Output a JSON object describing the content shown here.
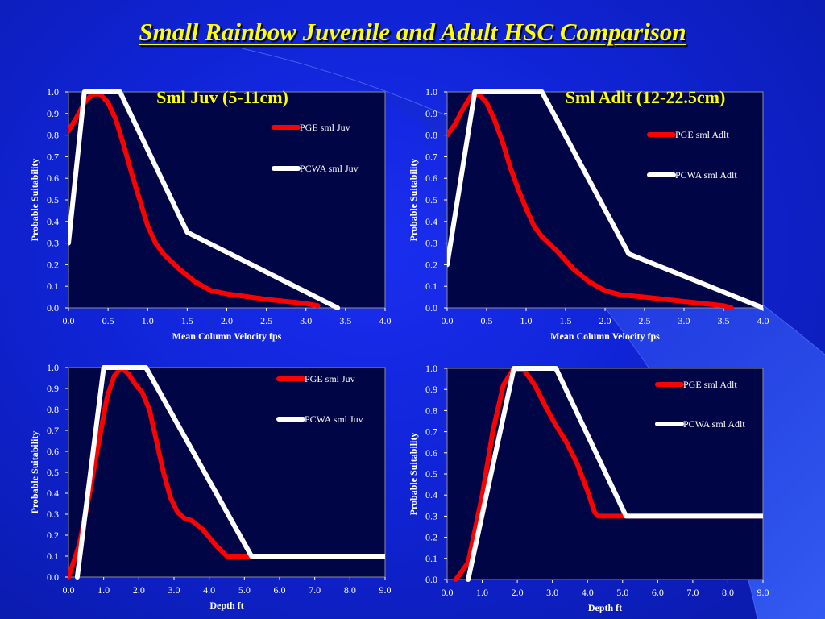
{
  "slide": {
    "title": "Small Rainbow Juvenile and Adult HSC Comparison"
  },
  "colors": {
    "plot_bg": "#000645",
    "pge": "#ff0000",
    "pcwa": "#ffffff",
    "title": "#ffff00"
  },
  "chart_data": [
    {
      "type": "line",
      "title": "Sml Juv (5-11cm)",
      "xlabel": "Mean Column Velocity fps",
      "ylabel": "Probable Suitability",
      "xlim": [
        0,
        4
      ],
      "ylim": [
        0,
        1
      ],
      "x_ticks": [
        "0.0",
        "0.5",
        "1.0",
        "1.5",
        "2.0",
        "2.5",
        "3.0",
        "3.5",
        "4.0"
      ],
      "y_ticks": [
        "0.0",
        "0.1",
        "0.2",
        "0.3",
        "0.4",
        "0.5",
        "0.6",
        "0.7",
        "0.8",
        "0.9",
        "1.0"
      ],
      "legend_position": "right",
      "series": [
        {
          "name": "PGE sml Juv",
          "color": "#ff0000",
          "points": [
            [
              0,
              0.82
            ],
            [
              0.1,
              0.88
            ],
            [
              0.2,
              0.95
            ],
            [
              0.3,
              0.99
            ],
            [
              0.4,
              0.99
            ],
            [
              0.5,
              0.95
            ],
            [
              0.6,
              0.87
            ],
            [
              0.7,
              0.75
            ],
            [
              0.8,
              0.62
            ],
            [
              0.9,
              0.5
            ],
            [
              1.0,
              0.38
            ],
            [
              1.1,
              0.3
            ],
            [
              1.2,
              0.25
            ],
            [
              1.4,
              0.18
            ],
            [
              1.6,
              0.12
            ],
            [
              1.8,
              0.08
            ],
            [
              2.0,
              0.065
            ],
            [
              2.5,
              0.04
            ],
            [
              3.0,
              0.02
            ],
            [
              3.15,
              0.01
            ]
          ]
        },
        {
          "name": "PCWA sml Juv",
          "color": "#ffffff",
          "points": [
            [
              0,
              0.3
            ],
            [
              0.2,
              1.0
            ],
            [
              0.65,
              1.0
            ],
            [
              1.5,
              0.35
            ],
            [
              3.4,
              0.0
            ]
          ]
        }
      ]
    },
    {
      "type": "line",
      "title": "Sml Adlt (12-22.5cm)",
      "xlabel": "Mean Column Velocity fps",
      "ylabel": "Probable Suitability",
      "xlim": [
        0,
        4
      ],
      "ylim": [
        0,
        1
      ],
      "x_ticks": [
        "0.0",
        "0.5",
        "1.0",
        "1.5",
        "2.0",
        "2.5",
        "3.0",
        "3.5",
        "4.0"
      ],
      "y_ticks": [
        "0.0",
        "0.1",
        "0.2",
        "0.3",
        "0.4",
        "0.5",
        "0.6",
        "0.7",
        "0.8",
        "0.9",
        "1.0"
      ],
      "legend_position": "right",
      "series": [
        {
          "name": "PGE sml Adlt",
          "color": "#ff0000",
          "points": [
            [
              0,
              0.8
            ],
            [
              0.1,
              0.85
            ],
            [
              0.2,
              0.92
            ],
            [
              0.3,
              0.98
            ],
            [
              0.4,
              0.99
            ],
            [
              0.5,
              0.95
            ],
            [
              0.6,
              0.87
            ],
            [
              0.7,
              0.77
            ],
            [
              0.8,
              0.65
            ],
            [
              0.9,
              0.55
            ],
            [
              1.0,
              0.46
            ],
            [
              1.1,
              0.38
            ],
            [
              1.2,
              0.33
            ],
            [
              1.4,
              0.26
            ],
            [
              1.6,
              0.18
            ],
            [
              1.8,
              0.12
            ],
            [
              2.0,
              0.08
            ],
            [
              2.2,
              0.06
            ],
            [
              2.5,
              0.05
            ],
            [
              3.0,
              0.03
            ],
            [
              3.5,
              0.01
            ],
            [
              3.6,
              0.0
            ]
          ]
        },
        {
          "name": "PCWA sml Adlt",
          "color": "#ffffff",
          "points": [
            [
              0,
              0.2
            ],
            [
              0.35,
              1.0
            ],
            [
              1.2,
              1.0
            ],
            [
              2.3,
              0.25
            ],
            [
              4.0,
              0.0
            ]
          ]
        }
      ]
    },
    {
      "type": "line",
      "xlabel": "Depth ft",
      "ylabel": "Probable Suitability",
      "xlim": [
        0,
        9
      ],
      "ylim": [
        0,
        1
      ],
      "x_ticks": [
        "0.0",
        "1.0",
        "2.0",
        "3.0",
        "4.0",
        "5.0",
        "6.0",
        "7.0",
        "8.0",
        "9.0"
      ],
      "y_ticks": [
        "0.0",
        "0.1",
        "0.2",
        "0.3",
        "0.4",
        "0.5",
        "0.6",
        "0.7",
        "0.8",
        "0.9",
        "1.0"
      ],
      "legend_position": "right",
      "series": [
        {
          "name": "PGE sml Juv",
          "color": "#ff0000",
          "points": [
            [
              0,
              0.0
            ],
            [
              0.3,
              0.15
            ],
            [
              0.6,
              0.4
            ],
            [
              0.9,
              0.68
            ],
            [
              1.1,
              0.86
            ],
            [
              1.3,
              0.96
            ],
            [
              1.5,
              1.0
            ],
            [
              1.7,
              0.97
            ],
            [
              1.9,
              0.92
            ],
            [
              2.1,
              0.88
            ],
            [
              2.3,
              0.8
            ],
            [
              2.5,
              0.65
            ],
            [
              2.7,
              0.5
            ],
            [
              2.9,
              0.38
            ],
            [
              3.1,
              0.31
            ],
            [
              3.3,
              0.28
            ],
            [
              3.5,
              0.27
            ],
            [
              3.8,
              0.23
            ],
            [
              4.2,
              0.15
            ],
            [
              4.5,
              0.1
            ],
            [
              9.0,
              0.1
            ]
          ]
        },
        {
          "name": "PCWA sml Juv",
          "color": "#ffffff",
          "points": [
            [
              0.25,
              0.0
            ],
            [
              1.0,
              1.0
            ],
            [
              2.2,
              1.0
            ],
            [
              5.2,
              0.1
            ],
            [
              9.0,
              0.1
            ]
          ]
        }
      ]
    },
    {
      "type": "line",
      "xlabel": "Depth ft",
      "ylabel": "Probable Suitability",
      "xlim": [
        0,
        9
      ],
      "ylim": [
        0,
        1
      ],
      "x_ticks": [
        "0.0",
        "1.0",
        "2.0",
        "3.0",
        "4.0",
        "5.0",
        "6.0",
        "7.0",
        "8.0",
        "9.0"
      ],
      "y_ticks": [
        "0.0",
        "0.1",
        "0.2",
        "0.3",
        "0.4",
        "0.5",
        "0.6",
        "0.7",
        "0.8",
        "0.9",
        "1.0"
      ],
      "legend_position": "right",
      "series": [
        {
          "name": "PGE sml Adlt",
          "color": "#ff0000",
          "points": [
            [
              0.25,
              0.0
            ],
            [
              0.6,
              0.08
            ],
            [
              1.0,
              0.4
            ],
            [
              1.3,
              0.7
            ],
            [
              1.6,
              0.92
            ],
            [
              1.9,
              1.0
            ],
            [
              2.2,
              0.99
            ],
            [
              2.5,
              0.92
            ],
            [
              2.8,
              0.82
            ],
            [
              3.1,
              0.73
            ],
            [
              3.4,
              0.65
            ],
            [
              3.7,
              0.55
            ],
            [
              4.0,
              0.42
            ],
            [
              4.2,
              0.32
            ],
            [
              4.3,
              0.3
            ],
            [
              5.0,
              0.3
            ],
            [
              9.0,
              0.3
            ]
          ]
        },
        {
          "name": "PCWA sml Adlt",
          "color": "#ffffff",
          "points": [
            [
              0.6,
              0.0
            ],
            [
              1.9,
              1.0
            ],
            [
              3.1,
              1.0
            ],
            [
              5.1,
              0.3
            ],
            [
              9.0,
              0.3
            ]
          ]
        }
      ]
    }
  ]
}
